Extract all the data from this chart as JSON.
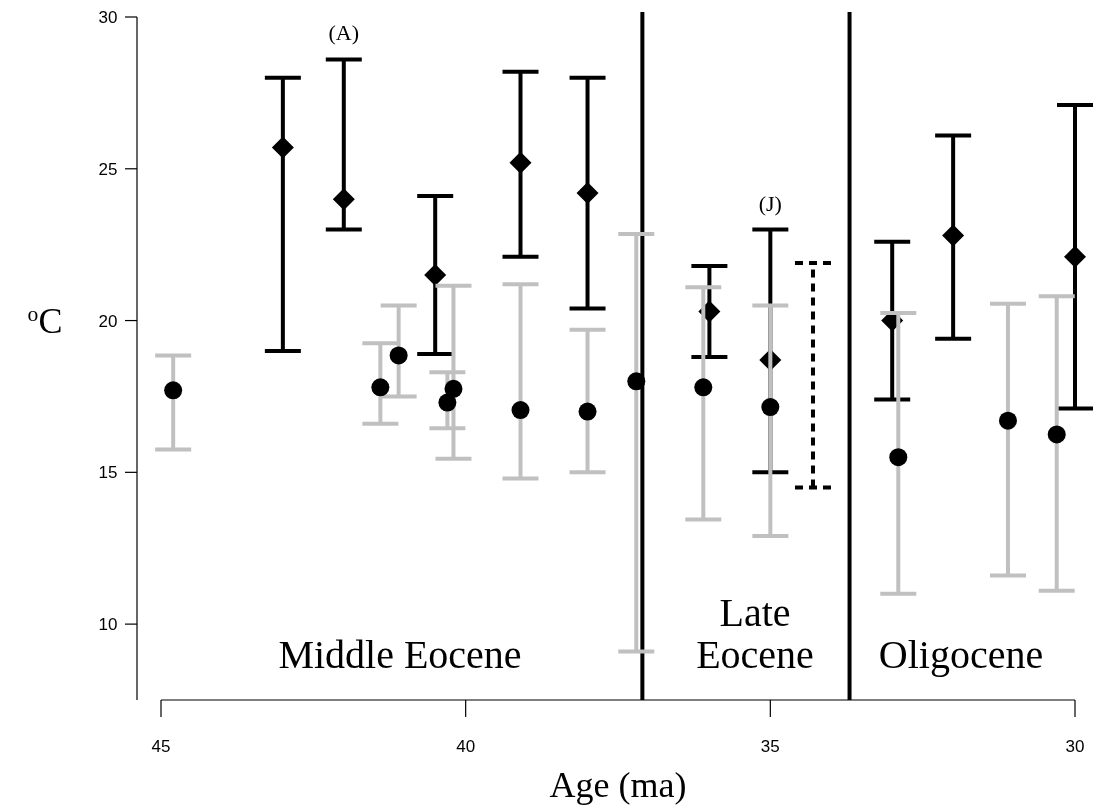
{
  "chart_data": {
    "type": "scatter",
    "xlabel": "Age (ma)",
    "ylabel": "$^{o}$C",
    "xlim": [
      45,
      30
    ],
    "ylim": [
      7.5,
      30
    ],
    "xticks": [
      45,
      40,
      35,
      30
    ],
    "yticks": [
      10,
      15,
      20,
      25,
      30
    ],
    "grid": false,
    "legend": false,
    "series": [
      {
        "marker": "diamond",
        "color": "#000000",
        "x": [
          43.0,
          42.0,
          40.5,
          39.1,
          38.0,
          36.0,
          35.0,
          33.0,
          32.0,
          30.0
        ],
        "values": [
          25.7,
          24.0,
          21.5,
          25.2,
          24.2,
          20.3,
          18.7,
          20.0,
          22.8,
          22.1
        ],
        "errors": [
          [
            19.0,
            28.0
          ],
          [
            23.0,
            28.6
          ],
          [
            18.9,
            24.1
          ],
          [
            22.1,
            28.2
          ],
          [
            20.4,
            28.0
          ],
          [
            18.8,
            21.8
          ],
          [
            15.0,
            23.0
          ],
          [
            17.4,
            22.6
          ],
          [
            19.4,
            26.1
          ],
          [
            17.1,
            27.1
          ]
        ]
      },
      {
        "marker": "circle",
        "color": "#c0c0c0",
        "colors": [
          "#000000",
          "#000000",
          "#000000",
          "#000000",
          "#000000",
          "#000000",
          "#000000",
          "#000000",
          "#000000",
          "#000000",
          "#000000",
          "#000000",
          "#000000"
        ],
        "x": [
          44.8,
          41.4,
          41.1,
          40.3,
          40.2,
          39.1,
          38.0,
          37.2,
          36.1,
          35.0,
          32.9,
          31.1,
          30.3
        ],
        "values": [
          17.7,
          17.8,
          18.85,
          17.3,
          17.75,
          17.05,
          17.0,
          18.0,
          17.8,
          17.15,
          15.5,
          16.7,
          16.25
        ],
        "errors": [
          [
            15.75,
            18.85
          ],
          [
            16.6,
            19.25
          ],
          [
            17.5,
            20.5
          ],
          [
            16.45,
            18.3
          ],
          [
            15.45,
            21.15
          ],
          [
            14.8,
            21.2
          ],
          [
            15.0,
            19.7
          ],
          [
            9.1,
            22.85
          ],
          [
            13.45,
            21.1
          ],
          [
            12.9,
            20.5
          ],
          [
            11.0,
            20.25
          ],
          [
            11.6,
            20.55
          ],
          [
            11.1,
            20.8
          ]
        ]
      },
      {
        "type": "line",
        "marker": "none",
        "line_style": "dashed",
        "color": "#000000",
        "x": [
          34.3,
          34.3
        ],
        "values": [
          14.5,
          21.9
        ]
      }
    ],
    "ref_lines": [
      {
        "axis": "x",
        "value": 37.1,
        "color": "#000000"
      },
      {
        "axis": "x",
        "value": 33.7,
        "color": "#000000"
      }
    ],
    "annotations": [
      "(A)",
      "(J)",
      "Middle Eocene",
      "Late\nEocene",
      "Oligocene"
    ]
  }
}
